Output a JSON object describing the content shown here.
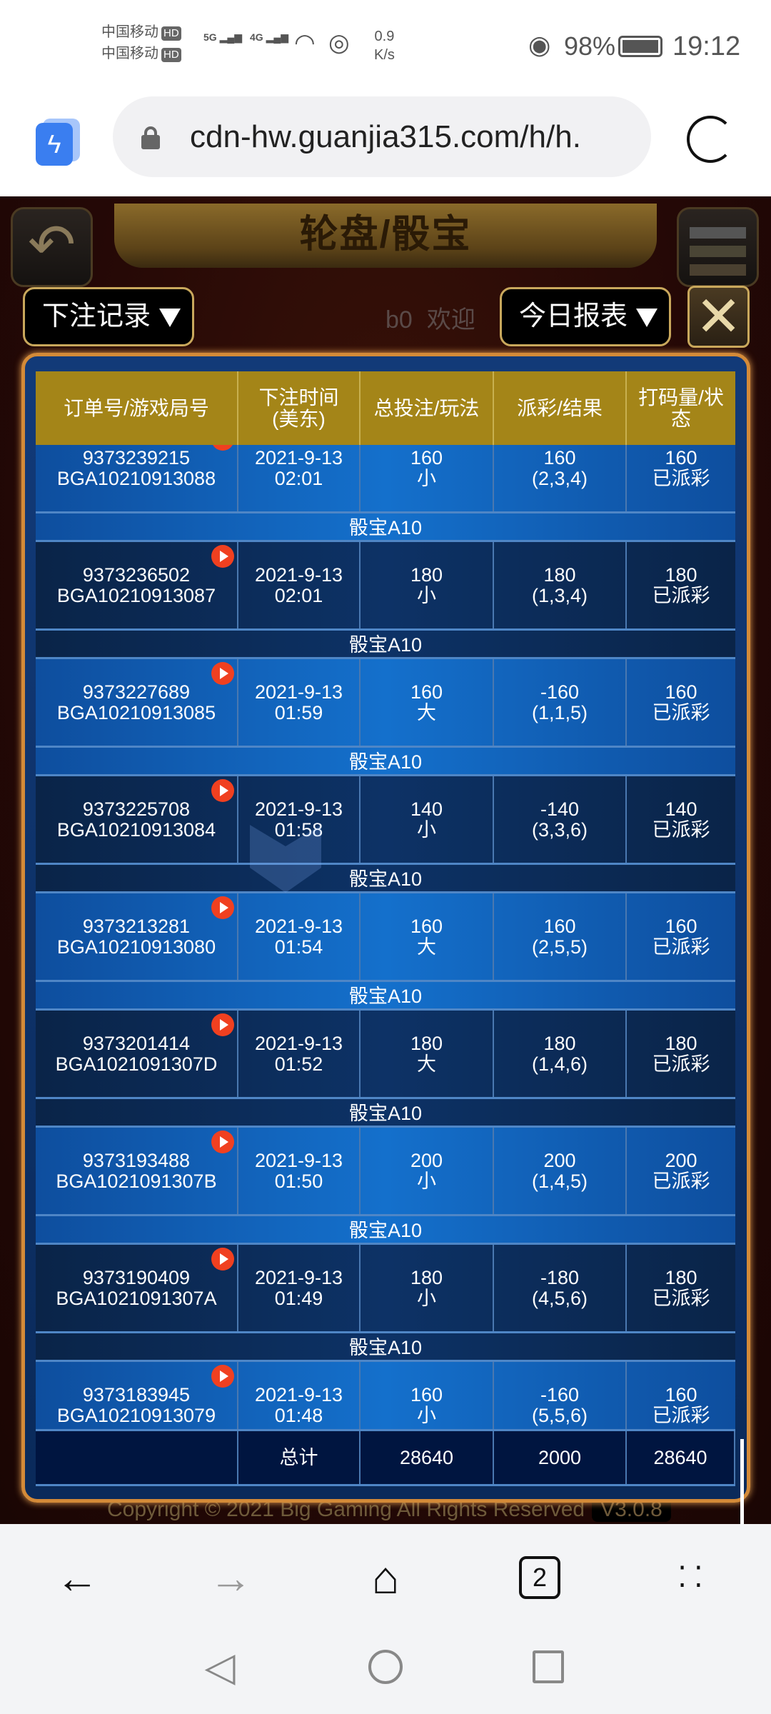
{
  "status_bar": {
    "carrier1": "中国移动",
    "carrier2": "中国移动",
    "hd": "HD",
    "net1": "5G",
    "net2": "4G",
    "speed_value": "0.9",
    "speed_unit": "K/s",
    "battery": "98%",
    "time": "19:12"
  },
  "browser": {
    "url": "cdn-hw.guanjia315.com/h/h.",
    "tab_count": "2"
  },
  "game": {
    "title": "轮盘/骰宝",
    "record_dropdown": "下注记录",
    "report_dropdown": "今日报表",
    "marquee_start": "b0",
    "marquee_end": "欢迎",
    "copyright": "Copyright © 2021 Big Gaming All Rights Reserved",
    "version": "V3.0.8"
  },
  "table": {
    "headers": [
      "订单号/游戏局号",
      "下注时间\n(美东)",
      "总投注/玩法",
      "派彩/结果",
      "打码量/状\n态"
    ],
    "rows": [
      {
        "order": "9373239215",
        "round": "BGA10210913088",
        "date": "2021-9-13",
        "time": "02:01",
        "bet": "160",
        "play": "小",
        "payout": "160",
        "result": "(2,3,4)",
        "valid": "160",
        "status": "已派彩",
        "game": "骰宝A10"
      },
      {
        "order": "9373236502",
        "round": "BGA10210913087",
        "date": "2021-9-13",
        "time": "02:01",
        "bet": "180",
        "play": "小",
        "payout": "180",
        "result": "(1,3,4)",
        "valid": "180",
        "status": "已派彩",
        "game": "骰宝A10"
      },
      {
        "order": "9373227689",
        "round": "BGA10210913085",
        "date": "2021-9-13",
        "time": "01:59",
        "bet": "160",
        "play": "大",
        "payout": "-160",
        "result": "(1,1,5)",
        "valid": "160",
        "status": "已派彩",
        "game": "骰宝A10"
      },
      {
        "order": "9373225708",
        "round": "BGA10210913084",
        "date": "2021-9-13",
        "time": "01:58",
        "bet": "140",
        "play": "小",
        "payout": "-140",
        "result": "(3,3,6)",
        "valid": "140",
        "status": "已派彩",
        "game": "骰宝A10"
      },
      {
        "order": "9373213281",
        "round": "BGA10210913080",
        "date": "2021-9-13",
        "time": "01:54",
        "bet": "160",
        "play": "大",
        "payout": "160",
        "result": "(2,5,5)",
        "valid": "160",
        "status": "已派彩",
        "game": "骰宝A10"
      },
      {
        "order": "9373201414",
        "round": "BGA1021091307D",
        "date": "2021-9-13",
        "time": "01:52",
        "bet": "180",
        "play": "大",
        "payout": "180",
        "result": "(1,4,6)",
        "valid": "180",
        "status": "已派彩",
        "game": "骰宝A10"
      },
      {
        "order": "9373193488",
        "round": "BGA1021091307B",
        "date": "2021-9-13",
        "time": "01:50",
        "bet": "200",
        "play": "小",
        "payout": "200",
        "result": "(1,4,5)",
        "valid": "200",
        "status": "已派彩",
        "game": "骰宝A10"
      },
      {
        "order": "9373190409",
        "round": "BGA1021091307A",
        "date": "2021-9-13",
        "time": "01:49",
        "bet": "180",
        "play": "小",
        "payout": "-180",
        "result": "(4,5,6)",
        "valid": "180",
        "status": "已派彩",
        "game": "骰宝A10"
      },
      {
        "order": "9373183945",
        "round": "BGA10210913079",
        "date": "2021-9-13",
        "time": "01:48",
        "bet": "160",
        "play": "小",
        "payout": "-160",
        "result": "(5,5,6)",
        "valid": "160",
        "status": "已派彩",
        "game": ""
      }
    ],
    "total": {
      "label": "总计",
      "bet": "28640",
      "payout": "2000",
      "valid": "28640"
    }
  },
  "colors": {
    "header_gold": "#a48518",
    "panel_border": "#d38a38",
    "row_light": "#1470cc",
    "row_dark": "#0d3266",
    "play_icon": "#f04020"
  }
}
